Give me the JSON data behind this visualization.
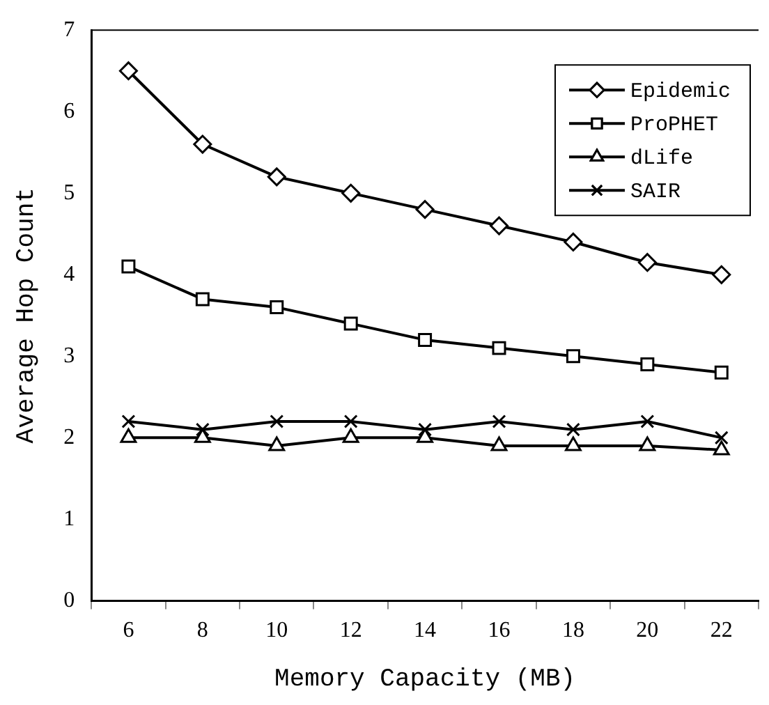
{
  "chart_data": {
    "type": "line",
    "xlabel": "Memory Capacity (MB)",
    "ylabel": "Average Hop Count",
    "categories": [
      "6",
      "8",
      "10",
      "12",
      "14",
      "16",
      "18",
      "20",
      "22"
    ],
    "ylim": [
      0,
      7
    ],
    "yticks": [
      0,
      1,
      2,
      3,
      4,
      5,
      6,
      7
    ],
    "grid": false,
    "legend": "top right",
    "line_style": "solid",
    "series": [
      {
        "name": "Epidemic",
        "color": "#000000",
        "marker": "diamond",
        "values": [
          6.5,
          5.6,
          5.2,
          5.0,
          4.8,
          4.6,
          4.4,
          4.15,
          4.0
        ]
      },
      {
        "name": "ProPHET",
        "color": "#000000",
        "marker": "square",
        "values": [
          4.1,
          3.7,
          3.6,
          3.4,
          3.2,
          3.1,
          3.0,
          2.9,
          2.8
        ]
      },
      {
        "name": "dLife",
        "color": "#000000",
        "marker": "triangle",
        "values": [
          2.0,
          2.0,
          1.9,
          2.0,
          2.0,
          1.9,
          1.9,
          1.9,
          1.85
        ]
      },
      {
        "name": "SAIR",
        "color": "#000000",
        "marker": "cross",
        "values": [
          2.2,
          2.1,
          2.2,
          2.2,
          2.1,
          2.2,
          2.1,
          2.2,
          2.0
        ]
      }
    ]
  }
}
